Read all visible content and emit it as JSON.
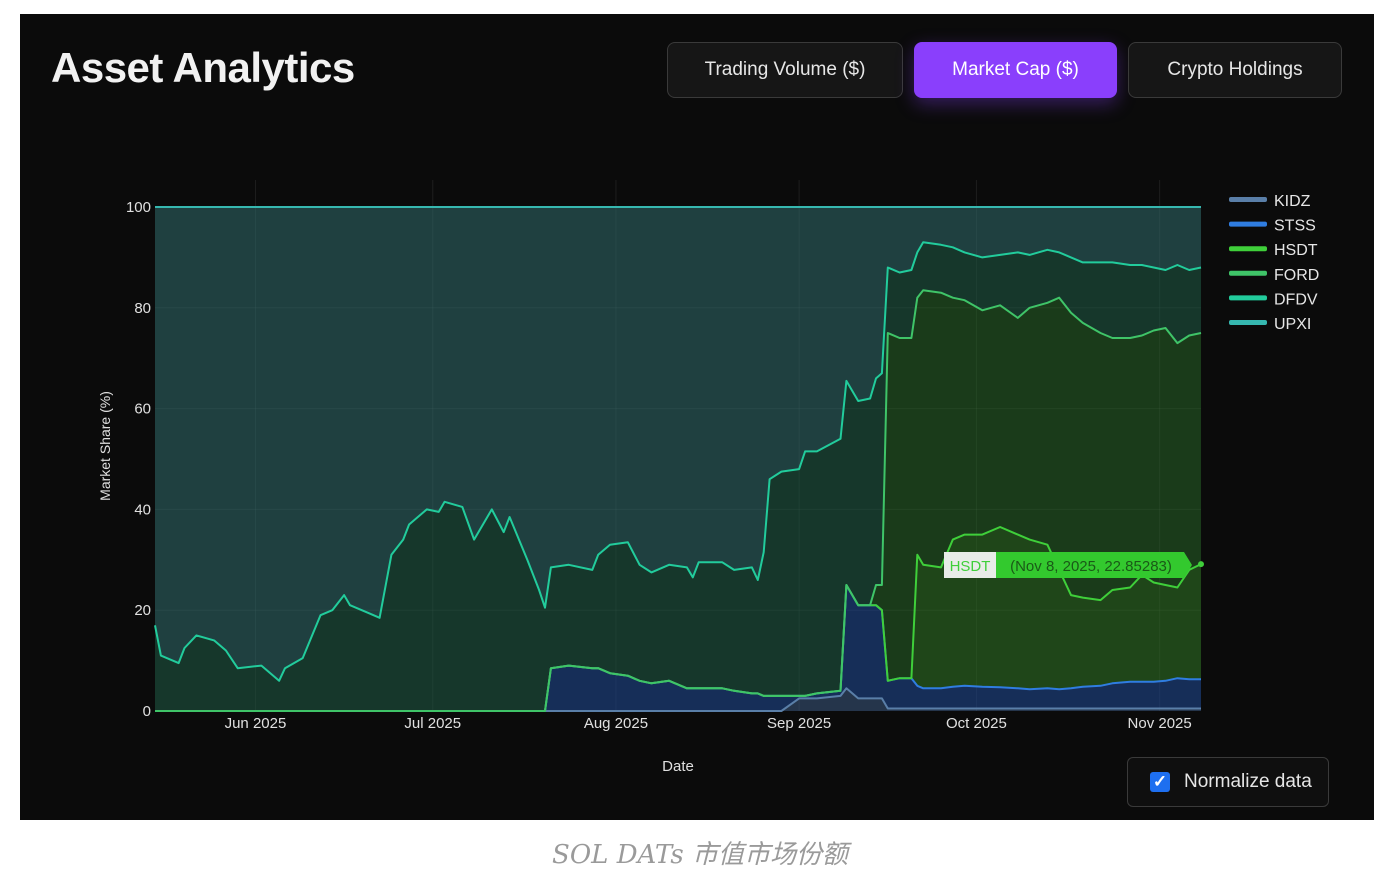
{
  "header": {
    "title": "Asset Analytics"
  },
  "tabs": [
    {
      "label": "Trading Volume ($)",
      "active": false
    },
    {
      "label": "Market Cap ($)",
      "active": true
    },
    {
      "label": "Crypto Holdings",
      "active": false
    }
  ],
  "normalize": {
    "label": "Normalize data",
    "checked": true
  },
  "caption": "SOL DATs 市值市场份额",
  "tooltip": {
    "series": "HSDT",
    "text": "(Nov 8, 2025, 22.85283)"
  },
  "colors": {
    "accent": "#8a3ffc",
    "background": "#0b0b0b"
  },
  "chart_data": {
    "type": "area",
    "stacked": true,
    "normalized": true,
    "xlabel": "Date",
    "ylabel": "Market Share (%)",
    "ylim": [
      0,
      100
    ],
    "yticks": [
      0,
      20,
      40,
      60,
      80,
      100
    ],
    "xticks": [
      {
        "date": "2025-06-01",
        "label": "Jun 2025"
      },
      {
        "date": "2025-07-01",
        "label": "Jul 2025"
      },
      {
        "date": "2025-08-01",
        "label": "Aug 2025"
      },
      {
        "date": "2025-09-01",
        "label": "Sep 2025"
      },
      {
        "date": "2025-10-01",
        "label": "Oct 2025"
      },
      {
        "date": "2025-11-01",
        "label": "Nov 2025"
      }
    ],
    "grid": true,
    "legend_position": "right",
    "x": [
      "2025-05-15",
      "2025-05-16",
      "2025-05-19",
      "2025-05-20",
      "2025-05-22",
      "2025-05-25",
      "2025-05-27",
      "2025-05-29",
      "2025-06-02",
      "2025-06-05",
      "2025-06-06",
      "2025-06-09",
      "2025-06-12",
      "2025-06-14",
      "2025-06-16",
      "2025-06-17",
      "2025-06-20",
      "2025-06-22",
      "2025-06-24",
      "2025-06-26",
      "2025-06-27",
      "2025-06-30",
      "2025-07-02",
      "2025-07-03",
      "2025-07-06",
      "2025-07-08",
      "2025-07-11",
      "2025-07-13",
      "2025-07-14",
      "2025-07-17",
      "2025-07-19",
      "2025-07-20",
      "2025-07-21",
      "2025-07-24",
      "2025-07-28",
      "2025-07-29",
      "2025-07-31",
      "2025-08-03",
      "2025-08-05",
      "2025-08-07",
      "2025-08-10",
      "2025-08-13",
      "2025-08-14",
      "2025-08-15",
      "2025-08-19",
      "2025-08-21",
      "2025-08-24",
      "2025-08-25",
      "2025-08-26",
      "2025-08-27",
      "2025-08-29",
      "2025-09-01",
      "2025-09-02",
      "2025-09-04",
      "2025-09-08",
      "2025-09-09",
      "2025-09-11",
      "2025-09-13",
      "2025-09-14",
      "2025-09-15",
      "2025-09-16",
      "2025-09-18",
      "2025-09-20",
      "2025-09-21",
      "2025-09-22",
      "2025-09-25",
      "2025-09-27",
      "2025-09-29",
      "2025-10-02",
      "2025-10-05",
      "2025-10-08",
      "2025-10-10",
      "2025-10-13",
      "2025-10-15",
      "2025-10-17",
      "2025-10-19",
      "2025-10-22",
      "2025-10-24",
      "2025-10-27",
      "2025-10-29",
      "2025-10-31",
      "2025-11-02",
      "2025-11-04",
      "2025-11-06",
      "2025-11-08"
    ],
    "series": [
      {
        "name": "KIDZ",
        "color": "#5a7fa8",
        "fill": "rgba(60,90,130,0.55)",
        "values": [
          0,
          0,
          0,
          0,
          0,
          0,
          0,
          0,
          0,
          0,
          0,
          0,
          0,
          0,
          0,
          0,
          0,
          0,
          0,
          0,
          0,
          0,
          0,
          0,
          0,
          0,
          0,
          0,
          0,
          0,
          0,
          0,
          0,
          0,
          0,
          0,
          0,
          0,
          0,
          0,
          0,
          0,
          0,
          0,
          0,
          0,
          0,
          0,
          0,
          0,
          0,
          2.5,
          2.5,
          2.5,
          3,
          4.5,
          2.5,
          2.5,
          2.5,
          2.5,
          0.5,
          0.5,
          0.5,
          0.5,
          0.5,
          0.5,
          0.5,
          0.5,
          0.5,
          0.5,
          0.5,
          0.5,
          0.5,
          0.5,
          0.5,
          0.5,
          0.5,
          0.5,
          0.5,
          0.5,
          0.5,
          0.5,
          0.5,
          0.5,
          0.5
        ]
      },
      {
        "name": "STSS",
        "color": "#2f7de1",
        "fill": "rgba(30,70,140,0.6)",
        "values": [
          0,
          0,
          0,
          0,
          0,
          0,
          0,
          0,
          0,
          0,
          0,
          0,
          0,
          0,
          0,
          0,
          0,
          0,
          0,
          0,
          0,
          0,
          0,
          0,
          0,
          0,
          0,
          0,
          0,
          0,
          0,
          0,
          8.5,
          9,
          8.5,
          8.5,
          7.5,
          7,
          6,
          5.5,
          6,
          4.5,
          4.5,
          4.5,
          4.5,
          4,
          3.5,
          3.5,
          3,
          3,
          3,
          0.5,
          0.5,
          1,
          1,
          20.5,
          18.5,
          18.5,
          18.5,
          17.5,
          5.5,
          6,
          6,
          4.5,
          4,
          4,
          4.3,
          4.5,
          4.3,
          4.2,
          4,
          3.8,
          4,
          3.8,
          4,
          4.3,
          4.5,
          5,
          5.3,
          5.3,
          5.3,
          5.5,
          6,
          5.8,
          5.8
        ]
      },
      {
        "name": "HSDT",
        "color": "#3fcf3a",
        "fill": "rgba(45,110,35,0.6)",
        "values": [
          0,
          0,
          0,
          0,
          0,
          0,
          0,
          0,
          0,
          0,
          0,
          0,
          0,
          0,
          0,
          0,
          0,
          0,
          0,
          0,
          0,
          0,
          0,
          0,
          0,
          0,
          0,
          0,
          0,
          0,
          0,
          0,
          0,
          0,
          0,
          0,
          0,
          0,
          0,
          0,
          0,
          0,
          0,
          0,
          0,
          0,
          0,
          0,
          0,
          0,
          0,
          0,
          0,
          0,
          0,
          0,
          0,
          0,
          0,
          0,
          0,
          0,
          0,
          26,
          24.5,
          24,
          29.2,
          30,
          30.2,
          31.8,
          30.5,
          29.7,
          28.5,
          23.7,
          18.5,
          17.7,
          17,
          18.5,
          18.7,
          21.2,
          19.7,
          19,
          18,
          21.7,
          22.85283
        ]
      },
      {
        "name": "FORD",
        "color": "#3fc468",
        "fill": "rgba(40,100,40,0.55)",
        "values": [
          0,
          0,
          0,
          0,
          0,
          0,
          0,
          0,
          0,
          0,
          0,
          0,
          0,
          0,
          0,
          0,
          0,
          0,
          0,
          0,
          0,
          0,
          0,
          0,
          0,
          0,
          0,
          0,
          0,
          0,
          0,
          0,
          0,
          0,
          0,
          0,
          0,
          0,
          0,
          0,
          0,
          0,
          0,
          0,
          0,
          0,
          0,
          0,
          0,
          0,
          0,
          0,
          0,
          0,
          0,
          0,
          0,
          0,
          4,
          5,
          69,
          67.5,
          67.5,
          51,
          54.5,
          54.5,
          48,
          46.5,
          44.5,
          44,
          43,
          46,
          48,
          54,
          56,
          54.5,
          53,
          50,
          49.5,
          47.5,
          50,
          51,
          48.5,
          46.5,
          45.85
        ]
      },
      {
        "name": "DFDV",
        "color": "#22cc9c",
        "fill": "rgba(30,85,65,0.6)",
        "values": [
          17,
          11,
          9.5,
          12.5,
          15,
          14,
          12,
          8.5,
          9,
          6,
          8.5,
          10.5,
          19,
          20,
          23,
          21,
          19.5,
          18.5,
          31,
          34,
          37,
          40,
          39.5,
          41.5,
          40.5,
          34,
          40,
          35.5,
          38.5,
          30,
          24,
          20.5,
          20,
          20,
          19.5,
          22.5,
          25.5,
          26.5,
          23,
          22,
          23,
          24,
          22,
          25,
          25,
          24,
          25,
          22.5,
          28.5,
          43,
          44.5,
          45,
          48.5,
          48,
          50,
          40.5,
          40.5,
          41,
          41,
          42,
          13,
          13,
          13.5,
          9,
          9.5,
          9.5,
          10,
          9.5,
          10.5,
          10,
          13,
          10.5,
          10.5,
          9,
          11,
          12,
          14,
          15,
          14.5,
          14,
          12.5,
          11.5,
          15.5,
          13,
          13
        ]
      },
      {
        "name": "UPXI",
        "color": "#36b8b0",
        "fill": "rgba(45,100,100,0.6)",
        "values": [
          83,
          89,
          90.5,
          87.5,
          85,
          86,
          88,
          91.5,
          91,
          94,
          91.5,
          89.5,
          81,
          80,
          77,
          79,
          80.5,
          81.5,
          69,
          66,
          63,
          60,
          60.5,
          58.5,
          59.5,
          66,
          60,
          64.5,
          61.5,
          70,
          76,
          79.5,
          71.5,
          71,
          72,
          69,
          67,
          66.5,
          71,
          72.5,
          71,
          71.5,
          73.5,
          70.5,
          70.5,
          72,
          71.5,
          74,
          68.5,
          54,
          52.5,
          52,
          48.5,
          48.5,
          46,
          34.5,
          38.5,
          38,
          34,
          33,
          12,
          13,
          12.5,
          9,
          7,
          7.5,
          8,
          9,
          10,
          9.5,
          9,
          9.5,
          8.5,
          9,
          10,
          11,
          11,
          11,
          11.5,
          11.5,
          12,
          12.5,
          11.5,
          12.5,
          12
        ]
      }
    ]
  }
}
